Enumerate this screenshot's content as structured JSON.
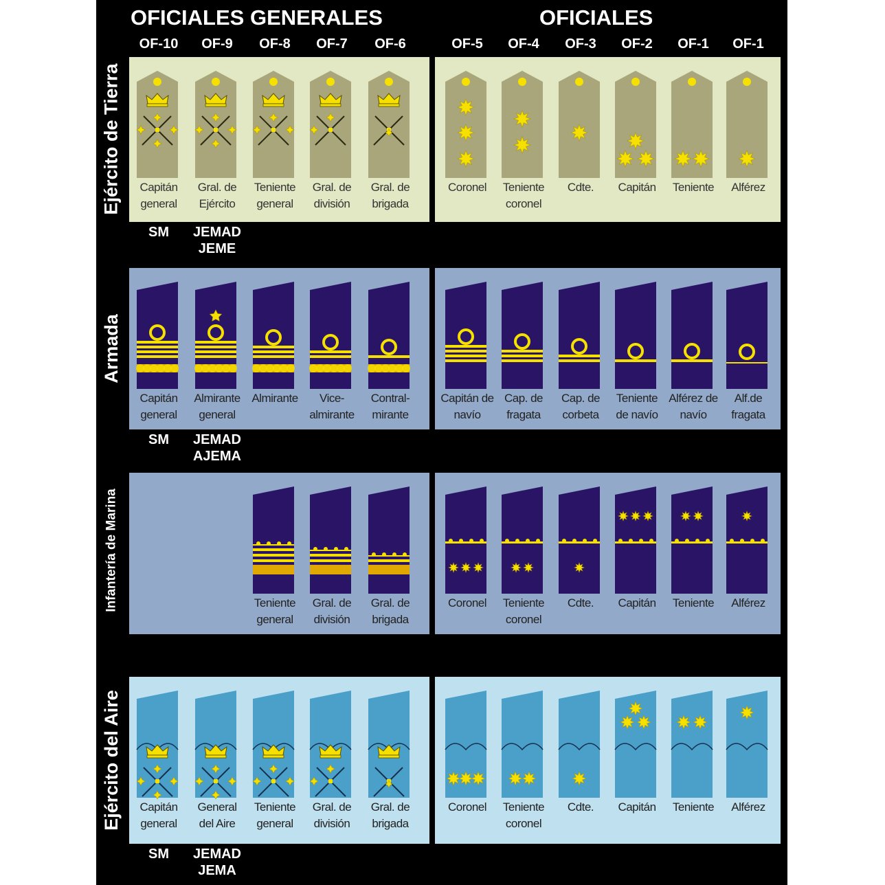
{
  "header": {
    "group_generales": "OFICIALES GENERALES",
    "group_oficiales": "OFICIALES",
    "codes": [
      "OF-10",
      "OF-9",
      "OF-8",
      "OF-7",
      "OF-6",
      "OF-5",
      "OF-4",
      "OF-3",
      "OF-2",
      "OF-1",
      "OF-1"
    ]
  },
  "colors": {
    "background": "#000000",
    "tierra_panel": "#e1e8c3",
    "tierra_board": "#a8a67a",
    "armada_panel": "#92a9c9",
    "armada_board": "#2a1466",
    "aire_panel": "#bfe0ef",
    "aire_board": "#4aa0c8",
    "insignia_gold": "#f6e000"
  },
  "branches": [
    {
      "name": "Ejército de Tierra",
      "generales": [
        "Capitán general",
        "Gral. de Ejército",
        "Teniente general",
        "Gral. de división",
        "Gral. de brigada"
      ],
      "oficiales": [
        "Coronel",
        "Teniente coronel",
        "Cdte.",
        "Capitán",
        "Teniente",
        "Alférez"
      ],
      "holders": [
        "SM",
        "JEMAD JEME"
      ]
    },
    {
      "name": "Armada",
      "generales": [
        "Capitán general",
        "Almirante general",
        "Almirante",
        "Vice- almirante",
        "Contral- mirante"
      ],
      "oficiales": [
        "Capitán de navío",
        "Cap. de fragata",
        "Cap. de corbeta",
        "Teniente de navío",
        "Alférez de navío",
        "Alf.de fragata"
      ],
      "holders": [
        "SM",
        "JEMAD AJEMA"
      ]
    },
    {
      "name": "Infantería de Marina",
      "generales": [
        "",
        "",
        "Teniente general",
        "Gral. de división",
        "Gral. de brigada"
      ],
      "oficiales": [
        "Coronel",
        "Teniente coronel",
        "Cdte.",
        "Capitán",
        "Teniente",
        "Alférez"
      ],
      "holders": []
    },
    {
      "name": "Ejército del Aire",
      "generales": [
        "Capitán general",
        "General del Aire",
        "Teniente general",
        "Gral. de división",
        "Gral. de brigada"
      ],
      "oficiales": [
        "Coronel",
        "Teniente coronel",
        "Cdte.",
        "Capitán",
        "Teniente",
        "Alférez"
      ],
      "holders": [
        "SM",
        "JEMAD JEMA"
      ]
    }
  ]
}
